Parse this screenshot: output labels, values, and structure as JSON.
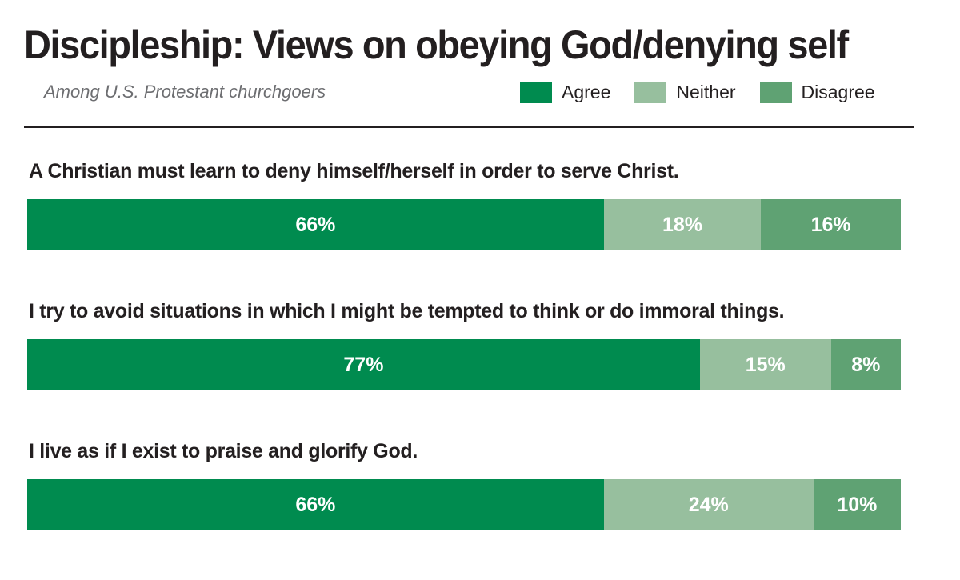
{
  "header": {
    "title": "Discipleship: Views on obeying God/denying self",
    "subtitle": "Among U.S. Protestant churchgoers"
  },
  "legend": [
    {
      "label": "Agree",
      "color": "#008b4f"
    },
    {
      "label": "Neither",
      "color": "#97bf9e"
    },
    {
      "label": "Disagree",
      "color": "#5fa273"
    }
  ],
  "chart_data": {
    "type": "bar",
    "stacked": true,
    "orientation": "horizontal",
    "title": "Discipleship: Views on obeying God/denying self",
    "subtitle": "Among U.S. Protestant churchgoers",
    "categories": [
      "A Christian must learn to deny himself/herself in order to serve Christ.",
      "I try to avoid situations in which I might be tempted to think or do immoral things.",
      "I live as if I exist to praise and glorify God."
    ],
    "series": [
      {
        "name": "Agree",
        "values": [
          66,
          77,
          66
        ],
        "labels": [
          "66%",
          "77%",
          "66%"
        ]
      },
      {
        "name": "Neither",
        "values": [
          18,
          15,
          24
        ],
        "labels": [
          "18%",
          "15%",
          "24%"
        ]
      },
      {
        "name": "Disagree",
        "values": [
          16,
          8,
          10
        ],
        "labels": [
          "16%",
          "8%",
          "10%"
        ]
      }
    ],
    "xlim": [
      0,
      100
    ],
    "legend_position": "top-right",
    "grid": false
  }
}
